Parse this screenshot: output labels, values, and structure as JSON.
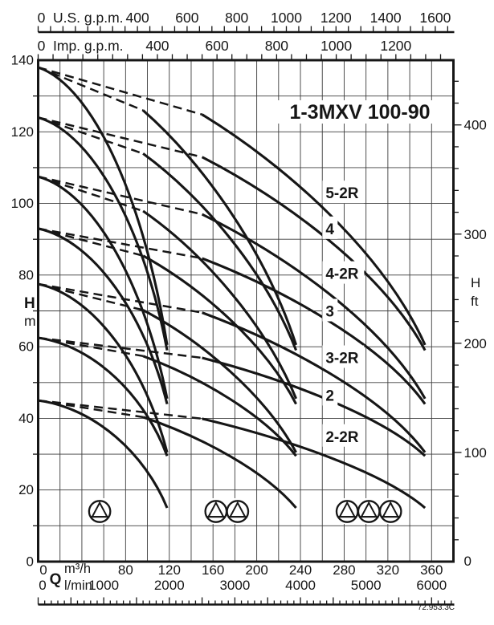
{
  "title": "1-3MXV 100-90",
  "drawing_code": "72.953.3C",
  "colors": {
    "ink": "#161616",
    "grid": "#3c3c3c",
    "bg": "#ffffff"
  },
  "axes": {
    "top_us_gpm": {
      "zero": "0",
      "name": "U.S. g.p.m.",
      "labels": [
        400,
        600,
        800,
        1000,
        1200,
        1400,
        1600
      ],
      "tick_step": 50,
      "max_tick": 1650,
      "m3h_per_unit": 0.22712
    },
    "top_imp_gpm": {
      "zero": "0",
      "name": "Imp. g.p.m.",
      "labels": [
        400,
        600,
        800,
        1000,
        1200
      ],
      "tick_step": 50,
      "max_tick": 1350,
      "m3h_per_unit": 0.27276
    },
    "left_head_m": {
      "sym": "H",
      "unit": "m",
      "labels": [
        0,
        20,
        40,
        60,
        80,
        100,
        120,
        140
      ],
      "grid_step_m": 10,
      "range_m": [
        0,
        140
      ]
    },
    "right_head_ft": {
      "sym": "H",
      "unit": "ft",
      "zero": "0",
      "labels": [
        100,
        200,
        300,
        400
      ],
      "tick_step_ft": 20,
      "m_per_ft": 0.3048
    },
    "bottom_flow_m3h": {
      "zero": "0",
      "sym": "Q",
      "unit": "m³/h",
      "labels": [
        80,
        120,
        160,
        200,
        240,
        280,
        320,
        360
      ],
      "grid_step": 20,
      "range": [
        0,
        380
      ]
    },
    "bottom_lmin": {
      "zero": "0",
      "unit": "l/min",
      "labels": [
        1000,
        2000,
        3000,
        4000,
        5000,
        6000
      ],
      "m3h_per_unit": 0.06,
      "tick_step": 100,
      "major_step": 500,
      "max_tick": 6300
    }
  },
  "chart_data": {
    "type": "line",
    "title": "1-3MXV 100-90",
    "xlabel": "Q m³/h",
    "ylabel": "H m",
    "xlim": [
      0,
      380
    ],
    "ylim": [
      0,
      140
    ],
    "grid": "on",
    "per_pump_max_flow_m3h": 118,
    "parallel_configs": [
      1,
      2,
      3
    ],
    "dashed_until_flow_2p_m3h": 96,
    "dashed_until_flow_3p_m3h": 150,
    "series": [
      {
        "name": "5-2R",
        "shutoff_head_m": 138.0,
        "end_head_m": 60.5,
        "label_at_q": 263,
        "label_at_h": 103.0
      },
      {
        "name": "4",
        "shutoff_head_m": 124.0,
        "end_head_m": 59.0,
        "label_at_q": 263,
        "label_at_h": 93.0
      },
      {
        "name": "4-2R",
        "shutoff_head_m": 107.5,
        "end_head_m": 45.5,
        "label_at_q": 263,
        "label_at_h": 80.5
      },
      {
        "name": "3",
        "shutoff_head_m": 93.0,
        "end_head_m": 44.0,
        "label_at_q": 263,
        "label_at_h": 70.0
      },
      {
        "name": "3-2R",
        "shutoff_head_m": 77.5,
        "end_head_m": 30.5,
        "label_at_q": 263,
        "label_at_h": 57.0
      },
      {
        "name": "2",
        "shutoff_head_m": 62.5,
        "end_head_m": 29.5,
        "label_at_q": 263,
        "label_at_h": 46.5
      },
      {
        "name": "2-2R",
        "shutoff_head_m": 45.0,
        "end_head_m": 15.0,
        "label_at_q": 263,
        "label_at_h": 35.0
      }
    ],
    "pump_groups": [
      {
        "pumps": 1,
        "at_flow_m3h": 56.3
      },
      {
        "pumps": 2,
        "at_flow_m3h": 172.6
      },
      {
        "pumps": 3,
        "at_flow_m3h": 302.6
      }
    ]
  }
}
